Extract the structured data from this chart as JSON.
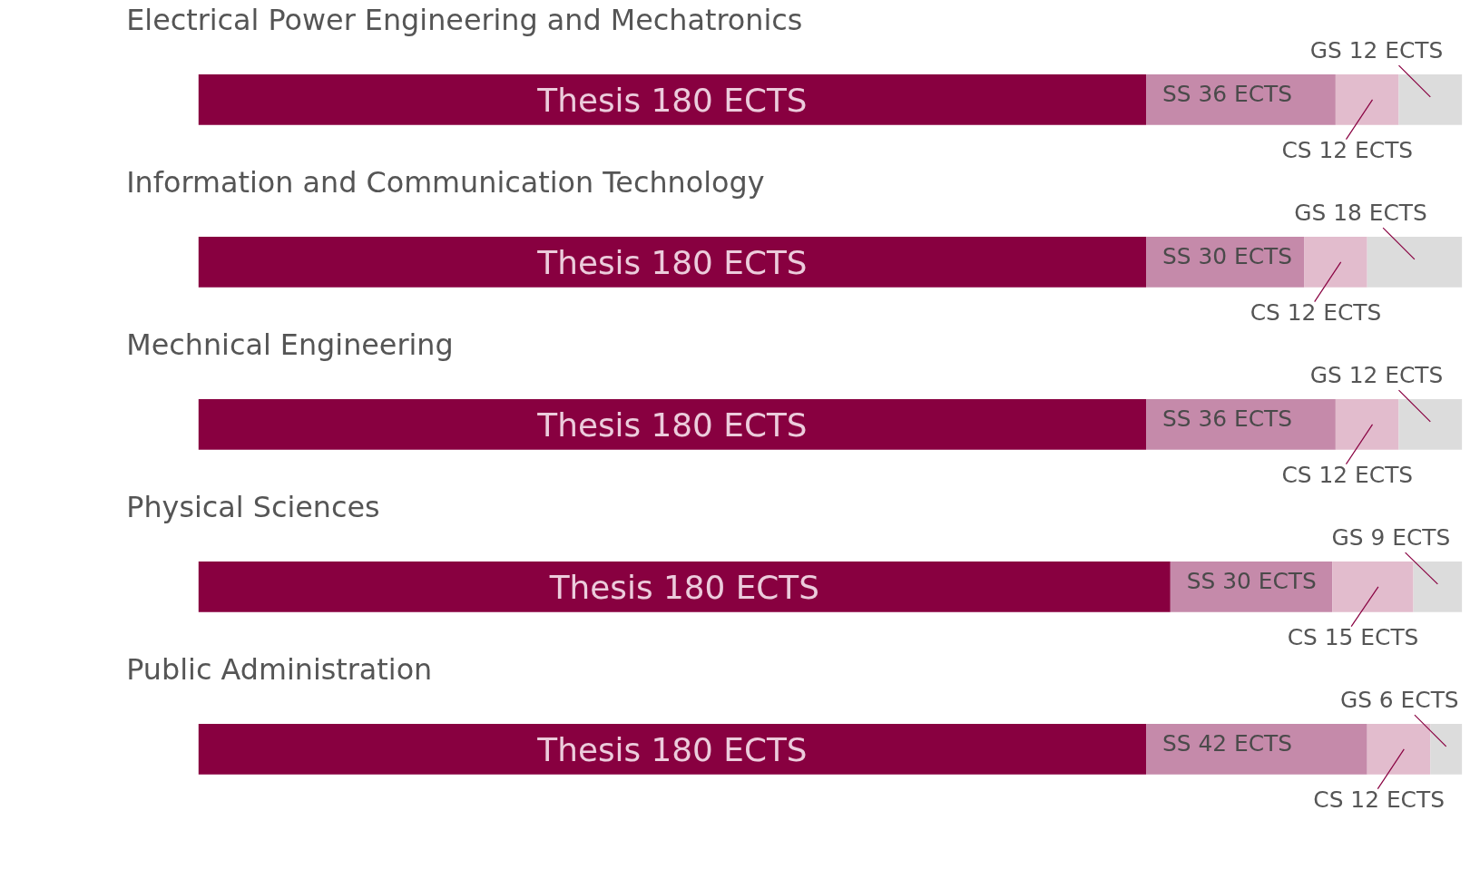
{
  "chart_data": [
    {
      "type": "bar",
      "title": "Electrical Power Engineering and Mechatronics",
      "orientation": "horizontal",
      "stacked": true,
      "categories": [
        null
      ],
      "tick_labels": false,
      "legend": false,
      "series": [
        {
          "color": "#880040",
          "values": [
            180
          ],
          "value_labels": [
            "Thesis 180 ECTS"
          ]
        },
        {
          "color": "#c58aaa",
          "values": [
            36
          ],
          "value_labels": [
            "SS 36 ECTS"
          ]
        },
        {
          "color": "#e2bccd",
          "values": [
            12
          ],
          "value_labels": [
            "CS 12 ECTS"
          ]
        },
        {
          "color": "#dcdcdc",
          "values": [
            12
          ],
          "value_labels": [
            "GS 12 ECTS"
          ]
        }
      ]
    },
    {
      "type": "bar",
      "title": "Information and Communication Technology",
      "orientation": "horizontal",
      "stacked": true,
      "categories": [
        null
      ],
      "tick_labels": false,
      "legend": false,
      "series": [
        {
          "color": "#880040",
          "values": [
            180
          ],
          "value_labels": [
            "Thesis 180 ECTS"
          ]
        },
        {
          "color": "#c58aaa",
          "values": [
            30
          ],
          "value_labels": [
            "SS 30 ECTS"
          ]
        },
        {
          "color": "#e2bccd",
          "values": [
            12
          ],
          "value_labels": [
            "CS 12 ECTS"
          ]
        },
        {
          "color": "#dcdcdc",
          "values": [
            18
          ],
          "value_labels": [
            "GS 18 ECTS"
          ]
        }
      ]
    },
    {
      "type": "bar",
      "title": "Mechnical Engineering",
      "orientation": "horizontal",
      "stacked": true,
      "categories": [
        null
      ],
      "tick_labels": false,
      "legend": false,
      "series": [
        {
          "color": "#880040",
          "values": [
            180
          ],
          "value_labels": [
            "Thesis 180 ECTS"
          ]
        },
        {
          "color": "#c58aaa",
          "values": [
            36
          ],
          "value_labels": [
            "SS 36 ECTS"
          ]
        },
        {
          "color": "#e2bccd",
          "values": [
            12
          ],
          "value_labels": [
            "CS 12 ECTS"
          ]
        },
        {
          "color": "#dcdcdc",
          "values": [
            12
          ],
          "value_labels": [
            "GS 12 ECTS"
          ]
        }
      ]
    },
    {
      "type": "bar",
      "title": "Physical Sciences",
      "orientation": "horizontal",
      "stacked": true,
      "categories": [
        null
      ],
      "tick_labels": false,
      "legend": false,
      "series": [
        {
          "color": "#880040",
          "values": [
            180
          ],
          "value_labels": [
            "Thesis 180 ECTS"
          ]
        },
        {
          "color": "#c58aaa",
          "values": [
            30
          ],
          "value_labels": [
            "SS 30 ECTS"
          ]
        },
        {
          "color": "#e2bccd",
          "values": [
            15
          ],
          "value_labels": [
            "CS 15 ECTS"
          ]
        },
        {
          "color": "#dcdcdc",
          "values": [
            9
          ],
          "value_labels": [
            "GS 9 ECTS"
          ]
        }
      ]
    },
    {
      "type": "bar",
      "title": "Public Administration",
      "orientation": "horizontal",
      "stacked": true,
      "categories": [
        null
      ],
      "tick_labels": false,
      "legend": false,
      "series": [
        {
          "color": "#880040",
          "values": [
            180
          ],
          "value_labels": [
            "Thesis 180 ECTS"
          ]
        },
        {
          "color": "#c58aaa",
          "values": [
            42
          ],
          "value_labels": [
            "SS 42 ECTS"
          ]
        },
        {
          "color": "#e2bccd",
          "values": [
            12
          ],
          "value_labels": [
            "CS 12 ECTS"
          ]
        },
        {
          "color": "#dcdcdc",
          "values": [
            6
          ],
          "value_labels": [
            "GS 6 ECTS"
          ]
        }
      ]
    }
  ]
}
